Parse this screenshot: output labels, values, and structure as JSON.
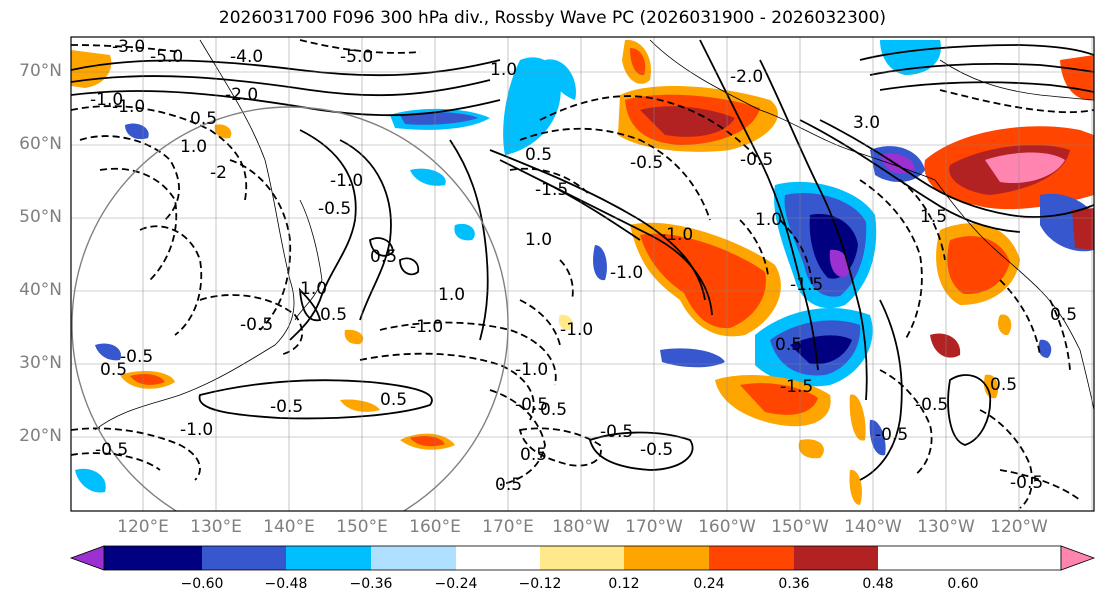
{
  "title": "2026031700 F096 300 hPa div., Rossby Wave PC (2026031900 - 2026032300)",
  "lat_ticks": [
    "70°N",
    "60°N",
    "50°N",
    "40°N",
    "30°N",
    "20°N"
  ],
  "lon_ticks": [
    "120°E",
    "130°E",
    "140°E",
    "150°E",
    "160°E",
    "170°E",
    "180°W",
    "170°W",
    "160°W",
    "150°W",
    "140°W",
    "130°W",
    "120°W"
  ],
  "colorbar": {
    "labels": [
      "−0.60",
      "−0.48",
      "−0.36",
      "−0.24",
      "−0.12",
      "0.12",
      "0.24",
      "0.36",
      "0.48",
      "0.60"
    ],
    "colors": [
      "#9a31d0",
      "#000080",
      "#3757cf",
      "#00bfff",
      "#b0e0ff",
      "#ffffff",
      "#ffe98a",
      "#ffa500",
      "#ff4500",
      "#b22222",
      "#ff85b0"
    ]
  },
  "contour_labels": [
    {
      "text": "-3.0"
    },
    {
      "text": "-5.0"
    },
    {
      "text": "-4.0"
    },
    {
      "text": "-5.0"
    },
    {
      "text": "-1.0"
    },
    {
      "text": "-2.0"
    },
    {
      "text": "-1.0"
    },
    {
      "text": "0.5"
    },
    {
      "text": "1.0"
    },
    {
      "text": "-0.5"
    },
    {
      "text": "-1.0"
    },
    {
      "text": "-2"
    },
    {
      "text": "1.0"
    },
    {
      "text": "0.5"
    },
    {
      "text": "-1.0"
    },
    {
      "text": "-0.5"
    },
    {
      "text": "0.5"
    },
    {
      "text": "1.0"
    },
    {
      "text": "0.5"
    },
    {
      "text": "-1.5"
    },
    {
      "text": "1.0"
    },
    {
      "text": "3.0"
    },
    {
      "text": "-0.5"
    },
    {
      "text": "1.0"
    },
    {
      "text": "-1.5"
    },
    {
      "text": "0.5"
    },
    {
      "text": "-1.0"
    },
    {
      "text": "0.5"
    },
    {
      "text": "-0.5"
    },
    {
      "text": "-1.0"
    },
    {
      "text": "-0.5"
    },
    {
      "text": "-0.5"
    },
    {
      "text": "0.5"
    },
    {
      "text": "-0.5"
    },
    {
      "text": "0.5"
    },
    {
      "text": "-0.5"
    },
    {
      "text": "-1.5"
    },
    {
      "text": "-0.5"
    },
    {
      "text": "0.5"
    },
    {
      "text": "-0.5"
    },
    {
      "text": "-1.0"
    },
    {
      "text": "-1.0"
    },
    {
      "text": "-0.5"
    },
    {
      "text": "0.5"
    },
    {
      "text": "0.5"
    },
    {
      "text": "-0.5"
    },
    {
      "text": "0.5"
    },
    {
      "text": "1.5"
    },
    {
      "text": "-1.0"
    },
    {
      "text": "-0.5"
    },
    {
      "text": "-2.0"
    },
    {
      "text": "1.0"
    }
  ]
}
